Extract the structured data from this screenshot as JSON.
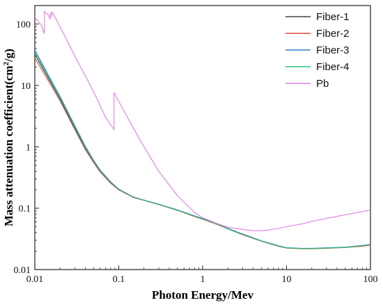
{
  "chart_data": {
    "type": "line",
    "xlabel": "Photon Energy/Mev",
    "ylabel": "Mass attenuation coefficient(cm",
    "ylabel_sup": "2",
    "ylabel_tail": "/g)",
    "xscale": "log",
    "yscale": "log",
    "xlim": [
      0.01,
      100
    ],
    "ylim": [
      0.01,
      200
    ],
    "x_ticks": [
      0.01,
      0.1,
      1,
      10,
      100
    ],
    "x_tick_labels": [
      "0.01",
      "0.1",
      "1",
      "10",
      "100"
    ],
    "y_ticks": [
      0.01,
      0.1,
      1,
      10,
      100
    ],
    "y_tick_labels": [
      "0.01",
      "0.1",
      "1",
      "10",
      "100"
    ],
    "grid": false,
    "legend": "top-right",
    "series": [
      {
        "name": "Fiber-1",
        "color": "#444444",
        "x": [
          0.01,
          0.015,
          0.02,
          0.03,
          0.04,
          0.05,
          0.06,
          0.08,
          0.1,
          0.15,
          0.2,
          0.3,
          0.5,
          0.8,
          1,
          1.5,
          2,
          3,
          5,
          8,
          10,
          15,
          20,
          30,
          50,
          80,
          100
        ],
        "y": [
          32,
          12,
          6,
          2,
          0.95,
          0.58,
          0.4,
          0.26,
          0.2,
          0.15,
          0.135,
          0.115,
          0.093,
          0.074,
          0.067,
          0.055,
          0.046,
          0.037,
          0.029,
          0.024,
          0.0225,
          0.022,
          0.022,
          0.0225,
          0.023,
          0.0245,
          0.0255
        ]
      },
      {
        "name": "Fiber-2",
        "color": "#e0483c",
        "x": [
          0.01,
          0.015,
          0.02,
          0.03,
          0.04,
          0.05,
          0.06,
          0.08,
          0.1,
          0.15,
          0.2,
          0.3,
          0.5,
          0.8,
          1,
          1.5,
          2,
          3,
          5,
          8,
          10,
          15,
          20,
          30,
          50,
          80,
          100
        ],
        "y": [
          28,
          11,
          5.6,
          1.9,
          0.9,
          0.56,
          0.39,
          0.255,
          0.198,
          0.149,
          0.134,
          0.114,
          0.092,
          0.073,
          0.066,
          0.054,
          0.046,
          0.037,
          0.029,
          0.024,
          0.0224,
          0.0218,
          0.0218,
          0.0222,
          0.0228,
          0.024,
          0.025
        ]
      },
      {
        "name": "Fiber-3",
        "color": "#2f7fd3",
        "x": [
          0.01,
          0.015,
          0.02,
          0.03,
          0.04,
          0.05,
          0.06,
          0.08,
          0.1,
          0.15,
          0.2,
          0.3,
          0.5,
          0.8,
          1,
          1.5,
          2,
          3,
          5,
          8,
          10,
          15,
          20,
          30,
          50,
          80,
          100
        ],
        "y": [
          38,
          13.5,
          6.6,
          2.2,
          1.02,
          0.61,
          0.42,
          0.27,
          0.205,
          0.152,
          0.136,
          0.116,
          0.094,
          0.075,
          0.068,
          0.055,
          0.047,
          0.038,
          0.0295,
          0.0245,
          0.0228,
          0.0222,
          0.0222,
          0.0226,
          0.0232,
          0.0247,
          0.0258
        ]
      },
      {
        "name": "Fiber-4",
        "color": "#2bbf7a",
        "x": [
          0.01,
          0.015,
          0.02,
          0.03,
          0.04,
          0.05,
          0.06,
          0.08,
          0.1,
          0.15,
          0.2,
          0.3,
          0.5,
          0.8,
          1,
          1.5,
          2,
          3,
          5,
          8,
          10,
          15,
          20,
          30,
          50,
          80,
          100
        ],
        "y": [
          35,
          12.8,
          6.3,
          2.1,
          0.98,
          0.6,
          0.41,
          0.265,
          0.202,
          0.151,
          0.135,
          0.115,
          0.093,
          0.074,
          0.067,
          0.055,
          0.046,
          0.0375,
          0.0292,
          0.0242,
          0.0226,
          0.022,
          0.022,
          0.0224,
          0.023,
          0.0244,
          0.0255
        ]
      },
      {
        "name": "Pb",
        "color": "#e07ce6",
        "x": [
          0.01,
          0.012,
          0.013,
          0.013,
          0.0145,
          0.0152,
          0.0152,
          0.0158,
          0.0159,
          0.0159,
          0.0165,
          0.02,
          0.03,
          0.05,
          0.07,
          0.088,
          0.088,
          0.1,
          0.15,
          0.2,
          0.3,
          0.5,
          0.8,
          1,
          1.5,
          2,
          3,
          4,
          5,
          6,
          8,
          10,
          15,
          20,
          30,
          50,
          80,
          100
        ],
        "y": [
          130,
          95,
          70,
          160,
          140,
          120,
          150,
          140,
          130,
          158,
          150,
          90,
          30,
          8,
          3,
          1.9,
          7.6,
          5.5,
          2.0,
          1.0,
          0.4,
          0.16,
          0.085,
          0.07,
          0.056,
          0.049,
          0.045,
          0.043,
          0.043,
          0.044,
          0.047,
          0.05,
          0.055,
          0.061,
          0.068,
          0.078,
          0.088,
          0.093
        ]
      }
    ]
  }
}
